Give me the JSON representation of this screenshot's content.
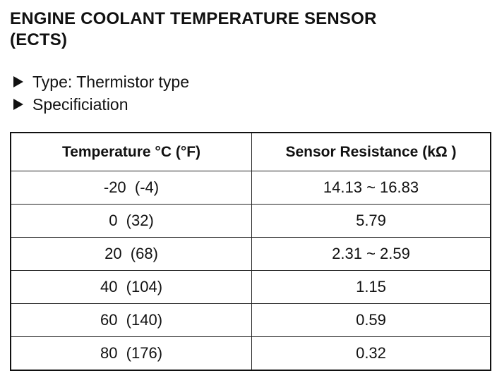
{
  "header": {
    "title_lines": [
      "ENGINE COOLANT TEMPERATURE SENSOR",
      "(ECTS)"
    ]
  },
  "bullets": [
    "Type: Thermistor type",
    "Specificiation"
  ],
  "table": {
    "columns": [
      "Temperature °C (°F)",
      "Sensor Resistance (kΩ )"
    ],
    "rows": [
      [
        "-20  (-4)",
        "14.13 ~ 16.83"
      ],
      [
        "0  (32)",
        "5.79"
      ],
      [
        "20  (68)",
        "2.31 ~ 2.59"
      ],
      [
        "40  (104)",
        "1.15"
      ],
      [
        "60  (140)",
        "0.59"
      ],
      [
        "80  (176)",
        "0.32"
      ]
    ]
  }
}
